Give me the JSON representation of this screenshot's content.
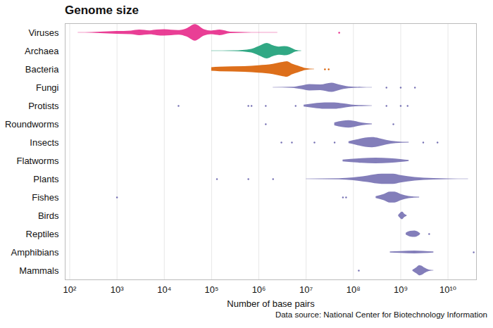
{
  "chart_data": {
    "type": "violin",
    "title": "Genome size",
    "xlabel": "Number of base pairs",
    "caption": "Data source: National Center for Biotechnology Information",
    "log": "x",
    "grid": true,
    "xlim": [
      80,
      40000000000
    ],
    "xticks": [
      {
        "value": 100,
        "label": "10²"
      },
      {
        "value": 1000,
        "label": "10³"
      },
      {
        "value": 10000,
        "label": "10⁴"
      },
      {
        "value": 100000,
        "label": "10⁵"
      },
      {
        "value": 1000000,
        "label": "10⁶"
      },
      {
        "value": 10000000,
        "label": "10⁷"
      },
      {
        "value": 100000000,
        "label": "10⁸"
      },
      {
        "value": 1000000000,
        "label": "10⁹"
      },
      {
        "value": 10000000000,
        "label": "10¹⁰"
      }
    ],
    "series": [
      {
        "name": "Viruses",
        "color": "#e7298a",
        "x": [
          150,
          300,
          1000,
          2000,
          3000,
          5000,
          7000,
          10000,
          20000,
          30000,
          45000,
          70000,
          100000,
          150000,
          250000,
          500000,
          1000000,
          2500000
        ],
        "density": [
          0.01,
          0.03,
          0.15,
          0.2,
          0.3,
          0.22,
          0.3,
          0.35,
          0.25,
          0.45,
          0.9,
          0.35,
          0.2,
          0.3,
          0.08,
          0.04,
          0.02,
          0.01
        ],
        "points": [
          50000000
        ]
      },
      {
        "name": "Archaea",
        "color": "#1b9e77",
        "x": [
          100000,
          300000,
          700000,
          1000000,
          1500000,
          2000000,
          2700000,
          3500000,
          4500000,
          6000000,
          8000000
        ],
        "density": [
          0.01,
          0.03,
          0.2,
          0.5,
          0.85,
          0.6,
          0.45,
          0.5,
          0.4,
          0.1,
          0.02
        ],
        "points": []
      },
      {
        "name": "Bacteria",
        "color": "#d95f02",
        "x": [
          100000,
          150000,
          500000,
          1000000,
          2000000,
          3000000,
          4000000,
          5000000,
          7000000,
          10000000,
          15000000
        ],
        "density": [
          0.2,
          0.25,
          0.3,
          0.4,
          0.55,
          0.75,
          0.85,
          0.6,
          0.35,
          0.1,
          0.02
        ],
        "points": [
          25000000,
          30000000
        ]
      },
      {
        "name": "Fungi",
        "color": "#7570b3",
        "x": [
          2000000,
          5000000,
          8000000,
          12000000,
          20000000,
          35000000,
          50000000,
          80000000,
          150000000,
          250000000
        ],
        "density": [
          0.02,
          0.05,
          0.2,
          0.35,
          0.3,
          0.5,
          0.3,
          0.1,
          0.04,
          0.02
        ],
        "points": [
          500000000,
          1000000000,
          2000000000
        ]
      },
      {
        "name": "Protists",
        "color": "#7570b3",
        "x": [
          9000000,
          15000000,
          25000000,
          40000000,
          60000000,
          90000000,
          150000000,
          250000000
        ],
        "density": [
          0.1,
          0.25,
          0.35,
          0.35,
          0.25,
          0.12,
          0.05,
          0.02
        ],
        "points": [
          20000,
          600000,
          700000,
          1400000,
          6000000,
          500000000,
          1000000000,
          1400000000
        ]
      },
      {
        "name": "Roundworms",
        "color": "#7570b3",
        "x": [
          40000000,
          60000000,
          80000000,
          100000000,
          150000000,
          250000000
        ],
        "density": [
          0.15,
          0.35,
          0.4,
          0.35,
          0.15,
          0.03
        ],
        "points": [
          1400000,
          700000000
        ]
      },
      {
        "name": "Insects",
        "color": "#7570b3",
        "x": [
          80000000,
          120000000,
          180000000,
          250000000,
          350000000,
          500000000,
          800000000,
          1500000000
        ],
        "density": [
          0.1,
          0.3,
          0.5,
          0.55,
          0.45,
          0.25,
          0.1,
          0.03
        ],
        "points": [
          3000000,
          5000000,
          15000000,
          40000000,
          3000000000,
          6000000000
        ]
      },
      {
        "name": "Flatworms",
        "color": "#7570b3",
        "x": [
          60000000,
          150000000,
          300000000,
          600000000,
          1000000000,
          1500000000
        ],
        "density": [
          0.1,
          0.25,
          0.3,
          0.25,
          0.15,
          0.05
        ],
        "points": []
      },
      {
        "name": "Plants",
        "color": "#7570b3",
        "x": [
          10000000,
          50000000,
          100000000,
          200000000,
          400000000,
          700000000,
          1000000000,
          2000000000,
          5000000000,
          10000000000,
          27000000000
        ],
        "density": [
          0.02,
          0.06,
          0.15,
          0.35,
          0.55,
          0.55,
          0.4,
          0.2,
          0.08,
          0.04,
          0.02
        ],
        "points": [
          130000,
          600000,
          2000000
        ]
      },
      {
        "name": "Fishes",
        "color": "#7570b3",
        "x": [
          300000000,
          450000000,
          600000000,
          750000000,
          1000000000,
          1500000000,
          2500000000
        ],
        "density": [
          0.1,
          0.35,
          0.6,
          0.6,
          0.35,
          0.12,
          0.03
        ],
        "points": [
          1000,
          60000000,
          70000000
        ]
      },
      {
        "name": "Birds",
        "color": "#7570b3",
        "x": [
          900000000,
          1000000000,
          1050000000,
          1100000000,
          1200000000,
          1350000000
        ],
        "density": [
          0.05,
          0.3,
          0.4,
          0.4,
          0.2,
          0.05
        ],
        "points": []
      },
      {
        "name": "Reptiles",
        "color": "#7570b3",
        "x": [
          1300000000,
          1600000000,
          2000000000,
          2300000000,
          2600000000
        ],
        "density": [
          0.1,
          0.3,
          0.35,
          0.25,
          0.05
        ],
        "points": [
          4000000000
        ]
      },
      {
        "name": "Amphibians",
        "color": "#7570b3",
        "x": [
          600000000,
          1000000000,
          2000000000,
          3000000000,
          5000000000
        ],
        "density": [
          0.05,
          0.1,
          0.15,
          0.12,
          0.05
        ],
        "points": [
          35000000000
        ]
      },
      {
        "name": "Mammals",
        "color": "#7570b3",
        "x": [
          1800000000,
          2200000000,
          2500000000,
          2800000000,
          3200000000,
          4000000000,
          5000000000
        ],
        "density": [
          0.05,
          0.35,
          0.55,
          0.5,
          0.3,
          0.08,
          0.02
        ],
        "points": [
          130000000
        ]
      }
    ]
  }
}
